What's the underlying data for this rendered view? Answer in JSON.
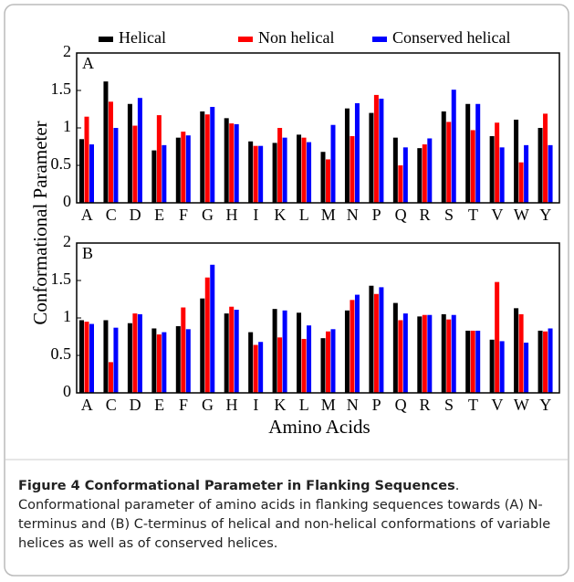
{
  "chart_data": [
    {
      "type": "bar",
      "panel_label": "A",
      "ylabel": "Conformational Parameter",
      "categories": [
        "A",
        "C",
        "D",
        "E",
        "F",
        "G",
        "H",
        "I",
        "K",
        "L",
        "M",
        "N",
        "P",
        "Q",
        "R",
        "S",
        "T",
        "V",
        "W",
        "Y"
      ],
      "series": [
        {
          "name": "Helical",
          "color": "#000000",
          "values": [
            0.85,
            1.62,
            1.32,
            0.7,
            0.87,
            1.22,
            1.13,
            0.82,
            0.8,
            0.91,
            0.68,
            1.26,
            1.2,
            0.87,
            0.73,
            1.22,
            1.32,
            0.89,
            1.11,
            1.0
          ]
        },
        {
          "name": "Non helical",
          "color": "#ff0000",
          "values": [
            1.15,
            1.35,
            1.03,
            1.17,
            0.95,
            1.18,
            1.06,
            0.76,
            1.0,
            0.87,
            0.58,
            0.89,
            1.44,
            0.5,
            0.78,
            1.08,
            0.97,
            1.07,
            0.54,
            1.19
          ]
        },
        {
          "name": "Conserved helical",
          "color": "#0000ff",
          "values": [
            0.78,
            1.0,
            1.4,
            0.77,
            0.9,
            1.28,
            1.05,
            0.76,
            0.87,
            0.81,
            1.04,
            1.33,
            1.39,
            0.74,
            0.86,
            1.51,
            1.32,
            0.74,
            0.77,
            0.77
          ]
        }
      ],
      "ylim": [
        0,
        2
      ],
      "yticks": [
        0,
        0.5,
        1,
        1.5,
        2
      ]
    },
    {
      "type": "bar",
      "panel_label": "B",
      "xlabel": "Amino Acids",
      "categories": [
        "A",
        "C",
        "D",
        "E",
        "F",
        "G",
        "H",
        "I",
        "K",
        "L",
        "M",
        "N",
        "P",
        "Q",
        "R",
        "S",
        "T",
        "V",
        "W",
        "Y"
      ],
      "series": [
        {
          "color": "#000000",
          "values": [
            0.97,
            0.97,
            0.93,
            0.86,
            0.89,
            1.26,
            1.06,
            0.81,
            1.12,
            1.07,
            0.73,
            1.1,
            1.43,
            1.2,
            1.02,
            1.05,
            0.83,
            0.71,
            1.13,
            0.83
          ]
        },
        {
          "color": "#ff0000",
          "values": [
            0.95,
            0.41,
            1.06,
            0.78,
            1.14,
            1.54,
            1.15,
            0.64,
            0.74,
            0.72,
            0.82,
            1.24,
            1.32,
            0.97,
            1.04,
            0.98,
            0.83,
            1.48,
            1.05,
            0.82
          ]
        },
        {
          "color": "#0000ff",
          "values": [
            0.92,
            0.87,
            1.05,
            0.81,
            0.85,
            1.71,
            1.11,
            0.68,
            1.1,
            0.9,
            0.85,
            1.31,
            1.41,
            1.06,
            1.04,
            1.04,
            0.83,
            0.69,
            0.67,
            0.86
          ]
        }
      ],
      "ylim": [
        0,
        2
      ],
      "yticks": [
        0,
        0.5,
        1,
        1.5,
        2
      ]
    }
  ],
  "caption": {
    "title": "Figure 4 Conformational Parameter in Flanking Sequences",
    "text": ". Conformational parameter of amino acids in flanking sequences towards (A) N-terminus and (B) C-terminus of helical and non-helical conformations of variable helices as well as of conserved helices."
  }
}
